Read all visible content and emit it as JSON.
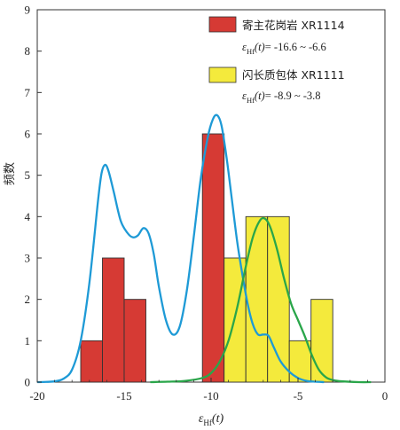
{
  "chart_data": {
    "type": "bar",
    "xlabel": "εHf(t)",
    "xlabel_parts": {
      "main": "ε",
      "sub": "Hf",
      "paren": "(t)"
    },
    "ylabel": "频数",
    "xlim": [
      -20,
      0
    ],
    "ylim": [
      0,
      9
    ],
    "xticks": [
      -20,
      -15,
      -10,
      -5,
      0
    ],
    "yticks": [
      0,
      1,
      2,
      3,
      4,
      5,
      6,
      7,
      8,
      9
    ],
    "grid": false,
    "legend_position": "top-right",
    "series": [
      {
        "name": "寄主花岗岩 XR1114",
        "range_label": "= -16.6 ~ -6.6",
        "color": "#d63a34",
        "bin_width": 1.25,
        "bins": [
          {
            "x0": -17.5,
            "count": 1
          },
          {
            "x0": -16.25,
            "count": 3
          },
          {
            "x0": -15.0,
            "count": 2
          },
          {
            "x0": -10.5,
            "count": 6
          },
          {
            "x0": -7.5,
            "count": 1
          }
        ],
        "curve_color": "#1e9ad6",
        "curve": [
          [
            -20,
            0
          ],
          [
            -19.5,
            0.005
          ],
          [
            -19,
            0.02
          ],
          [
            -18.5,
            0.08
          ],
          [
            -18,
            0.3
          ],
          [
            -17.5,
            1.0
          ],
          [
            -17,
            2.4
          ],
          [
            -16.5,
            4.4
          ],
          [
            -16.3,
            5.05
          ],
          [
            -16.1,
            5.25
          ],
          [
            -15.9,
            5.1
          ],
          [
            -15.6,
            4.6
          ],
          [
            -15.2,
            3.9
          ],
          [
            -14.8,
            3.6
          ],
          [
            -14.5,
            3.5
          ],
          [
            -14.2,
            3.55
          ],
          [
            -13.9,
            3.72
          ],
          [
            -13.6,
            3.6
          ],
          [
            -13.3,
            3.1
          ],
          [
            -13,
            2.3
          ],
          [
            -12.6,
            1.5
          ],
          [
            -12.2,
            1.15
          ],
          [
            -11.8,
            1.35
          ],
          [
            -11.4,
            2.2
          ],
          [
            -11,
            3.5
          ],
          [
            -10.6,
            4.9
          ],
          [
            -10.2,
            5.9
          ],
          [
            -9.9,
            6.35
          ],
          [
            -9.65,
            6.45
          ],
          [
            -9.4,
            6.2
          ],
          [
            -9.1,
            5.4
          ],
          [
            -8.8,
            4.4
          ],
          [
            -8.5,
            3.4
          ],
          [
            -8.2,
            2.6
          ],
          [
            -7.9,
            1.9
          ],
          [
            -7.6,
            1.4
          ],
          [
            -7.3,
            1.15
          ],
          [
            -7.0,
            1.15
          ],
          [
            -6.7,
            1.12
          ],
          [
            -6.4,
            0.85
          ],
          [
            -6.0,
            0.5
          ],
          [
            -5.5,
            0.25
          ],
          [
            -5,
            0.1
          ],
          [
            -4.5,
            0.03
          ],
          [
            -4,
            0.01
          ],
          [
            -3.5,
            0
          ]
        ]
      },
      {
        "name": "闪长质包体 XR1111",
        "range_label": "= -8.9 ~ -3.8",
        "color": "#f4ea3c",
        "bin_width": 1.25,
        "bins": [
          {
            "x0": -9.25,
            "count": 3
          },
          {
            "x0": -8.0,
            "count": 4
          },
          {
            "x0": -6.75,
            "count": 4
          },
          {
            "x0": -5.5,
            "count": 1
          },
          {
            "x0": -4.25,
            "count": 2
          }
        ],
        "curve_color": "#2aa64a",
        "curve": [
          [
            -13.5,
            0
          ],
          [
            -12.5,
            0.01
          ],
          [
            -11.5,
            0.03
          ],
          [
            -10.5,
            0.1
          ],
          [
            -10,
            0.22
          ],
          [
            -9.5,
            0.5
          ],
          [
            -9,
            1.0
          ],
          [
            -8.5,
            1.8
          ],
          [
            -8,
            2.8
          ],
          [
            -7.6,
            3.5
          ],
          [
            -7.2,
            3.9
          ],
          [
            -6.9,
            3.95
          ],
          [
            -6.6,
            3.75
          ],
          [
            -6.2,
            3.2
          ],
          [
            -5.8,
            2.5
          ],
          [
            -5.4,
            1.9
          ],
          [
            -5.0,
            1.5
          ],
          [
            -4.6,
            1.1
          ],
          [
            -4.2,
            0.65
          ],
          [
            -3.8,
            0.3
          ],
          [
            -3.4,
            0.12
          ],
          [
            -3,
            0.05
          ],
          [
            -2.5,
            0.02
          ],
          [
            -1.5,
            0
          ],
          [
            -0.8,
            0
          ]
        ]
      }
    ]
  }
}
